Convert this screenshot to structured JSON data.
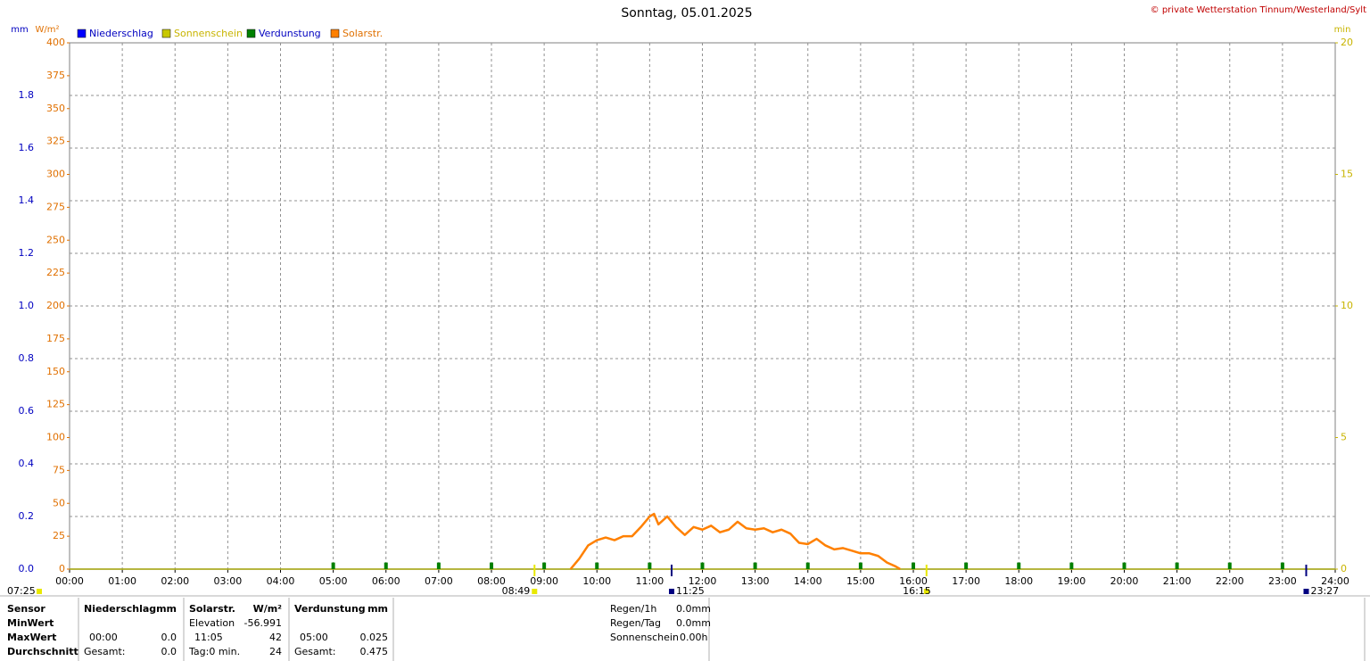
{
  "chart_data": {
    "type": "line",
    "title": "Sonntag, 05.01.2025",
    "credit": "© private Wetterstation Tinnum/Westerland/Sylt",
    "y_unit": "mm",
    "y2_unit": "W/m²",
    "y3_unit": "min",
    "grid": true,
    "xlim": [
      0,
      1440
    ],
    "xticks": [
      {
        "value": 0,
        "label": "00:00"
      },
      {
        "value": 60,
        "label": "01:00"
      },
      {
        "value": 120,
        "label": "02:00"
      },
      {
        "value": 180,
        "label": "03:00"
      },
      {
        "value": 240,
        "label": "04:00"
      },
      {
        "value": 300,
        "label": "05:00"
      },
      {
        "value": 360,
        "label": "06:00"
      },
      {
        "value": 420,
        "label": "07:00"
      },
      {
        "value": 480,
        "label": "08:00"
      },
      {
        "value": 540,
        "label": "09:00"
      },
      {
        "value": 600,
        "label": "10:00"
      },
      {
        "value": 660,
        "label": "11:00"
      },
      {
        "value": 720,
        "label": "12:00"
      },
      {
        "value": 780,
        "label": "13:00"
      },
      {
        "value": 840,
        "label": "14:00"
      },
      {
        "value": 900,
        "label": "15:00"
      },
      {
        "value": 960,
        "label": "16:00"
      },
      {
        "value": 1020,
        "label": "17:00"
      },
      {
        "value": 1080,
        "label": "18:00"
      },
      {
        "value": 1140,
        "label": "19:00"
      },
      {
        "value": 1200,
        "label": "20:00"
      },
      {
        "value": 1260,
        "label": "21:00"
      },
      {
        "value": 1320,
        "label": "22:00"
      },
      {
        "value": 1380,
        "label": "23:00"
      },
      {
        "value": 1440,
        "label": "24:00"
      }
    ],
    "ylim": [
      0,
      2
    ],
    "yticks": [
      {
        "value": 0,
        "label": "0.0"
      },
      0.2,
      0.4,
      0.6,
      0.8,
      {
        "value": 1,
        "label": "1.0"
      },
      1.2,
      1.4,
      1.6,
      1.8
    ],
    "y_color": "#0000c0",
    "y2lim": [
      0,
      400
    ],
    "y2ticks": [
      0,
      25,
      50,
      75,
      100,
      125,
      150,
      175,
      200,
      225,
      250,
      275,
      300,
      325,
      350,
      375,
      400
    ],
    "y2_color": "#e07000",
    "y3lim": [
      0,
      20
    ],
    "y3ticks": [
      0,
      5,
      10,
      15,
      20
    ],
    "y3_color": "#c8b400",
    "series": [
      {
        "name": "Niederschlag",
        "color": "#0000ff",
        "axis": "y",
        "style": "line",
        "x": [
          0,
          1440
        ],
        "values": [
          0,
          0
        ]
      },
      {
        "name": "Sonnenschein",
        "color": "#c8c800",
        "axis": "y3",
        "style": "line",
        "x": [
          0,
          1440
        ],
        "values": [
          0,
          0
        ]
      },
      {
        "name": "Verdunstung",
        "color": "#008000",
        "axis": "y",
        "style": "bars",
        "x": [
          300,
          360,
          420,
          480,
          540,
          600,
          660,
          720,
          780,
          840,
          900,
          960,
          1020,
          1080,
          1140,
          1200,
          1260,
          1320,
          1380
        ],
        "values": [
          0.025,
          0.025,
          0.025,
          0.025,
          0.025,
          0.025,
          0.025,
          0.025,
          0.025,
          0.025,
          0.025,
          0.025,
          0.025,
          0.025,
          0.025,
          0.025,
          0.025,
          0.025,
          0.025
        ]
      },
      {
        "name": "Solarstr.",
        "color": "#ff8000",
        "axis": "y2",
        "style": "line",
        "x": [
          570,
          580,
          590,
          600,
          610,
          620,
          630,
          640,
          650,
          660,
          665,
          670,
          680,
          690,
          700,
          710,
          720,
          730,
          740,
          750,
          760,
          770,
          780,
          790,
          800,
          810,
          820,
          830,
          840,
          850,
          860,
          870,
          880,
          890,
          900,
          910,
          920,
          930,
          940,
          945
        ],
        "values": [
          0,
          8,
          18,
          22,
          24,
          22,
          25,
          25,
          32,
          40,
          42,
          34,
          40,
          32,
          26,
          32,
          30,
          33,
          28,
          30,
          36,
          31,
          30,
          31,
          28,
          30,
          27,
          20,
          19,
          23,
          18,
          15,
          16,
          14,
          12,
          12,
          10,
          5,
          2,
          0
        ]
      }
    ],
    "left_note": "07:25",
    "events": [
      {
        "x": 529,
        "label": "08:49",
        "color": "#e8e800"
      },
      {
        "x": 685,
        "label": "11:25",
        "color": "#000080"
      },
      {
        "x": 975,
        "label": "16:15",
        "color": "#e8e800"
      },
      {
        "x": 1407,
        "label": "23:27",
        "color": "#000080"
      }
    ]
  },
  "stats": {
    "header": [
      "Sensor",
      "Niederschlag",
      "mm",
      "Solarstr.",
      "W/m²",
      "Verdunstung",
      "mm"
    ],
    "row_labels": [
      "MinWert",
      "MaxWert",
      "Durchschnitt"
    ],
    "solar_min": [
      "Elevation",
      "-56.991"
    ],
    "max": [
      "00:00",
      "0.0",
      "11:05",
      "42",
      "05:00",
      "0.025"
    ],
    "avg": [
      "Gesamt:",
      "0.0",
      "Tag:0 min.",
      "24",
      "Gesamt:",
      "0.475"
    ],
    "extra": [
      [
        "Regen/1h",
        "0.0mm"
      ],
      [
        "Regen/Tag",
        "0.0mm"
      ],
      [
        "Sonnenschein",
        "0.00h"
      ]
    ]
  }
}
